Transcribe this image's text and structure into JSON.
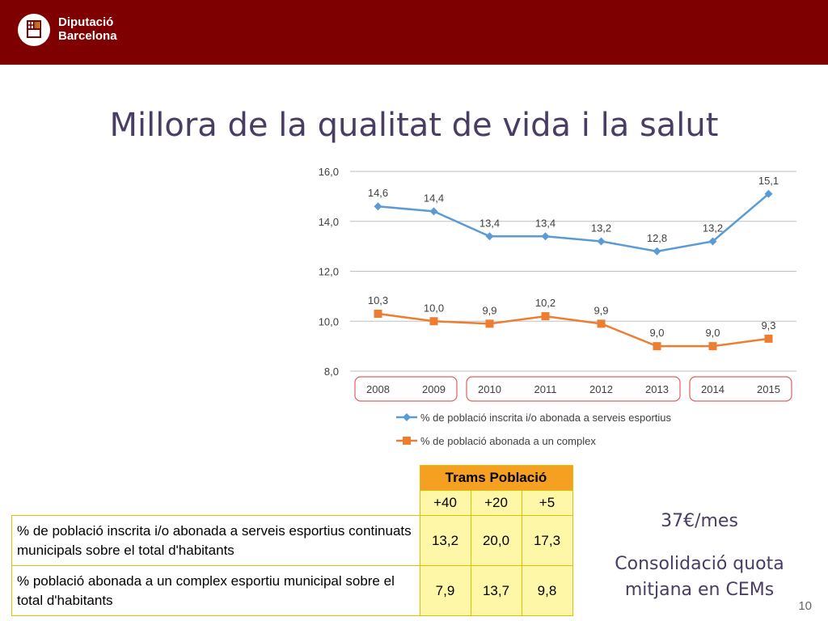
{
  "header": {
    "brand_line1": "Diputació",
    "brand_line2": "Barcelona"
  },
  "title": "Millora de la qualitat de vida i la salut",
  "chart_data": {
    "type": "line",
    "categories": [
      "2008",
      "2009",
      "2010",
      "2011",
      "2012",
      "2013",
      "2014",
      "2015"
    ],
    "ylim": [
      8.0,
      16.0
    ],
    "yticks": [
      "8,0",
      "10,0",
      "12,0",
      "14,0",
      "16,0"
    ],
    "series": [
      {
        "name": "% de població inscrita i/o abonada a serveis esportius",
        "values": [
          14.6,
          14.4,
          13.4,
          13.4,
          13.2,
          12.8,
          13.2,
          15.1
        ],
        "labels": [
          "14,6",
          "14,4",
          "13,4",
          "13,4",
          "13,2",
          "12,8",
          "13,2",
          "15,1"
        ],
        "color": "#5b9bd5",
        "marker": "diamond"
      },
      {
        "name": "% de població abonada  a un complex",
        "values": [
          10.3,
          10.0,
          9.9,
          10.2,
          9.9,
          9.0,
          9.0,
          9.3
        ],
        "labels": [
          "10,3",
          "10,0",
          "9,9",
          "10,2",
          "9,9",
          "9,0",
          "9,0",
          "9,3"
        ],
        "color": "#ed7d31",
        "marker": "square"
      }
    ],
    "groups": [
      [
        "2008",
        "2009"
      ],
      [
        "2010",
        "2011",
        "2012",
        "2013"
      ],
      [
        "2014",
        "2015"
      ]
    ]
  },
  "table": {
    "header": "Trams Població",
    "subheaders": [
      "+40",
      "+20",
      "+5"
    ],
    "rows": [
      {
        "label": "% de població inscrita i/o abonada a serveis esportius continuats municipals sobre el total d'habitants",
        "values": [
          "13,2",
          "20,0",
          "17,3"
        ]
      },
      {
        "label": "% població abonada a un complex esportiu municipal sobre el total d'habitants",
        "values": [
          "7,9",
          "13,7",
          "9,8"
        ]
      }
    ]
  },
  "side": {
    "price": "37€/mes",
    "note": "Consolidació quota mitjana en CEMs"
  },
  "page_number": "10",
  "colors": {
    "brand": "#7f0000",
    "title": "#4a3d64",
    "table_header": "#f5a020",
    "table_fill": "#fff7a8",
    "group_border": "#e06060"
  }
}
